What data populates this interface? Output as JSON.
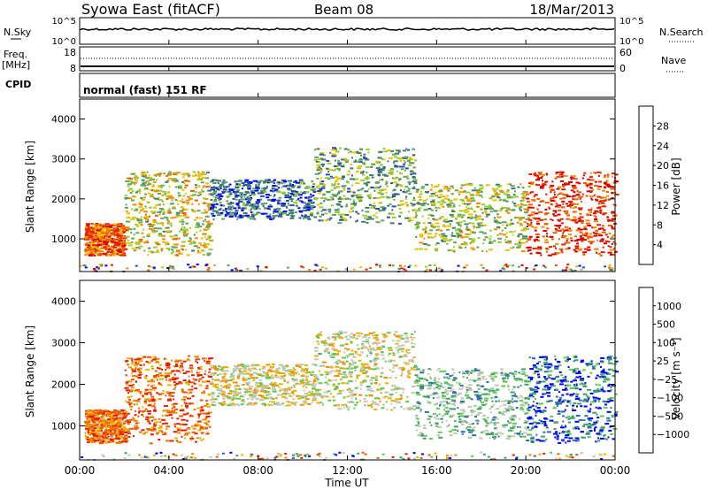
{
  "header": {
    "station": "Syowa East (fitACF)",
    "beam": "Beam 08",
    "date": "18/Mar/2013"
  },
  "top_strip": {
    "nsky_label": "N.Sky",
    "nsky_ticks": [
      "10^5",
      "10^0"
    ],
    "nsearch_label": "N.Search",
    "nsearch_ticks": [
      "10^5",
      "10^0"
    ],
    "freq_label": "Freq.",
    "freq_unit": "[MHz]",
    "freq_ticks": [
      "18",
      "8"
    ],
    "nave_label": "Nave",
    "nave_ticks": [
      "60",
      "0"
    ],
    "cpid_label": "CPID",
    "cpid_text": "normal (fast) 151 RF"
  },
  "chart_data": [
    {
      "type": "heatmap",
      "name": "power",
      "ylabel": "Slant Range [km]",
      "y_ticks": [
        "4000",
        "3000",
        "2000",
        "1000"
      ],
      "ylim": [
        180,
        4500
      ],
      "colorbar_label": "Power [dB]",
      "colorbar_ticks": [
        "28",
        "24",
        "20",
        "16",
        "12",
        "8",
        "4"
      ],
      "colors": [
        "#0000ff",
        "#2b4fa8",
        "#3f7f6a",
        "#5fa75f",
        "#9acd32",
        "#f0c000",
        "#f08c00",
        "#f05a00",
        "#e61e00",
        "#d20000"
      ],
      "scatter_bands": [
        {
          "t0": 0.2,
          "t1": 2.0,
          "r0": 600,
          "r1": 1400,
          "level": 0.75
        },
        {
          "t0": 2.0,
          "t1": 5.8,
          "r0": 600,
          "r1": 2700,
          "level": 0.5
        },
        {
          "t0": 5.8,
          "t1": 10.5,
          "r0": 1500,
          "r1": 2500,
          "level": 0.22
        },
        {
          "t0": 10.5,
          "t1": 15.0,
          "r0": 1400,
          "r1": 3300,
          "level": 0.35
        },
        {
          "t0": 15.0,
          "t1": 20.0,
          "r0": 700,
          "r1": 2400,
          "level": 0.45
        },
        {
          "t0": 20.0,
          "t1": 24.0,
          "r0": 600,
          "r1": 2700,
          "level": 0.85
        }
      ]
    },
    {
      "type": "heatmap",
      "name": "velocity",
      "ylabel": "Slant Range [km]",
      "y_ticks": [
        "4000",
        "3000",
        "2000",
        "1000"
      ],
      "ylim": [
        180,
        4500
      ],
      "colorbar_label": "Velocity [m s⁻¹]",
      "colorbar_ticks": [
        "1000",
        "500",
        "100",
        "25",
        "−25",
        "−100",
        "−500",
        "−1000"
      ],
      "colors": [
        "#e61e00",
        "#f05a00",
        "#f08c00",
        "#f0b000",
        "#c8c8b4",
        "#b4c8b4",
        "#5fc850",
        "#3f9f6a",
        "#2b6fa8",
        "#0000ff"
      ],
      "scatter_bands": [
        {
          "t0": 0.2,
          "t1": 2.0,
          "r0": 600,
          "r1": 1400,
          "level": 0.2
        },
        {
          "t0": 2.0,
          "t1": 5.8,
          "r0": 600,
          "r1": 2700,
          "level": 0.15
        },
        {
          "t0": 5.8,
          "t1": 10.5,
          "r0": 1500,
          "r1": 2500,
          "level": 0.45
        },
        {
          "t0": 10.5,
          "t1": 15.0,
          "r0": 1400,
          "r1": 3300,
          "level": 0.48
        },
        {
          "t0": 15.0,
          "t1": 20.0,
          "r0": 700,
          "r1": 2400,
          "level": 0.65
        },
        {
          "t0": 20.0,
          "t1": 24.0,
          "r0": 600,
          "r1": 2700,
          "level": 0.85
        }
      ]
    }
  ],
  "x_axis": {
    "label": "Time UT",
    "ticks": [
      "00:00",
      "04:00",
      "08:00",
      "12:00",
      "16:00",
      "20:00",
      "00:00"
    ]
  }
}
